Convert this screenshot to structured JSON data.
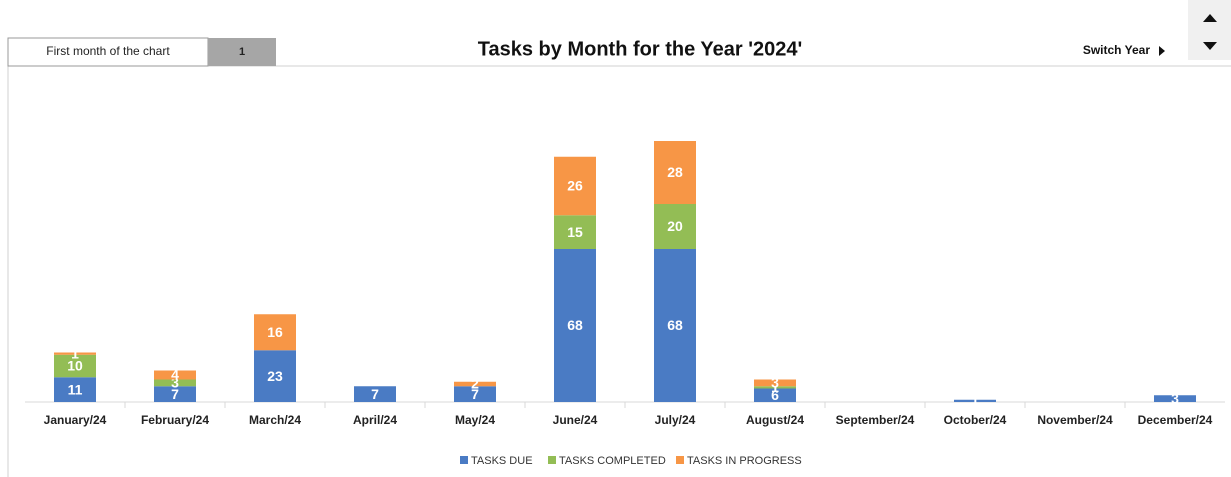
{
  "controls": {
    "first_month_label": "First month of the chart",
    "first_month_value": "1",
    "switch_year": "Switch Year"
  },
  "chart_data": {
    "type": "stacked_bar",
    "title": "Tasks by Month for the Year '2024'",
    "categories": [
      "January/24",
      "February/24",
      "March/24",
      "April/24",
      "May/24",
      "June/24",
      "July/24",
      "August/24",
      "September/24",
      "October/24",
      "November/24",
      "December/24"
    ],
    "series": [
      {
        "name": "TASKS DUE",
        "color": "#4a7bc4",
        "values": [
          11,
          7,
          23,
          7,
          7,
          68,
          68,
          6,
          0,
          1,
          0,
          3
        ]
      },
      {
        "name": "TASKS COMPLETED",
        "color": "#93bd55",
        "values": [
          10,
          3,
          0,
          0,
          0,
          15,
          20,
          1,
          0,
          0,
          0,
          0
        ]
      },
      {
        "name": "TASKS IN PROGRESS",
        "color": "#f79646",
        "values": [
          1,
          4,
          16,
          0,
          2,
          26,
          28,
          3,
          0,
          0,
          0,
          0
        ]
      }
    ],
    "ylim": [
      0,
      120
    ],
    "legend": "bottom"
  }
}
